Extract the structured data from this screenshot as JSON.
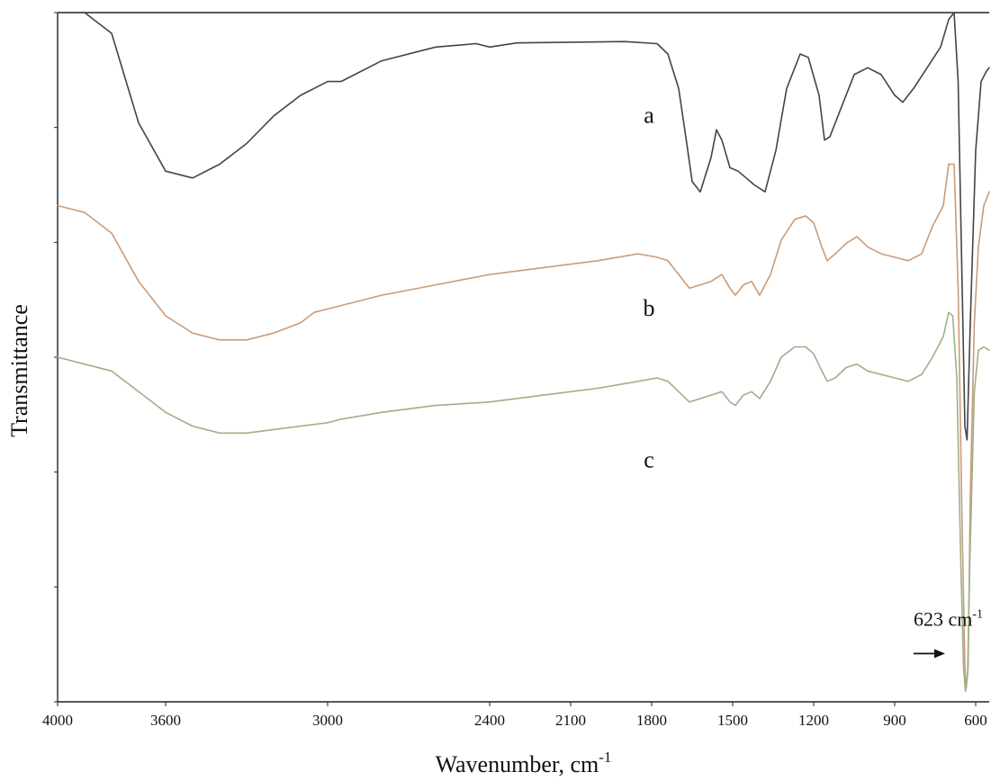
{
  "chart_data": {
    "type": "line",
    "title": "",
    "xlabel": "Wavenumber, cm",
    "xlabel_superscript": "-1",
    "ylabel": "Transmittance",
    "xlim": [
      4000,
      550
    ],
    "xticks": [
      {
        "value": 4000,
        "label": "4000"
      },
      {
        "value": 3600,
        "label": "3600"
      },
      {
        "value": 3000,
        "label": "3000"
      },
      {
        "value": 2400,
        "label": "2400"
      },
      {
        "value": 2100,
        "label": "2100"
      },
      {
        "value": 1800,
        "label": "1800"
      },
      {
        "value": 1500,
        "label": "1500"
      },
      {
        "value": 1200,
        "label": "1200"
      },
      {
        "value": 900,
        "label": "900"
      },
      {
        "value": 600,
        "label": "600"
      }
    ],
    "ylim": [
      0,
      100
    ],
    "grid": false,
    "legend": "none",
    "series": [
      {
        "name": "a",
        "color": "#444444",
        "points": [
          [
            4000,
            100
          ],
          [
            3900,
            100
          ],
          [
            3800,
            97
          ],
          [
            3700,
            84
          ],
          [
            3600,
            77
          ],
          [
            3500,
            76
          ],
          [
            3400,
            78
          ],
          [
            3300,
            81
          ],
          [
            3200,
            85
          ],
          [
            3100,
            88
          ],
          [
            3050,
            89
          ],
          [
            3000,
            90
          ],
          [
            2950,
            90
          ],
          [
            2800,
            93
          ],
          [
            2600,
            95
          ],
          [
            2450,
            95.5
          ],
          [
            2400,
            95
          ],
          [
            2300,
            95.6
          ],
          [
            2100,
            95.7
          ],
          [
            1900,
            95.8
          ],
          [
            1780,
            95.5
          ],
          [
            1740,
            94
          ],
          [
            1700,
            89
          ],
          [
            1670,
            81
          ],
          [
            1650,
            75.5
          ],
          [
            1620,
            74
          ],
          [
            1580,
            79
          ],
          [
            1560,
            83
          ],
          [
            1540,
            81.5
          ],
          [
            1510,
            77.5
          ],
          [
            1480,
            77
          ],
          [
            1450,
            76
          ],
          [
            1420,
            75
          ],
          [
            1380,
            74
          ],
          [
            1340,
            80
          ],
          [
            1300,
            89
          ],
          [
            1250,
            94
          ],
          [
            1220,
            93.5
          ],
          [
            1180,
            88
          ],
          [
            1160,
            81.5
          ],
          [
            1140,
            82
          ],
          [
            1100,
            86
          ],
          [
            1050,
            91
          ],
          [
            1000,
            92
          ],
          [
            950,
            91
          ],
          [
            900,
            88
          ],
          [
            870,
            87
          ],
          [
            830,
            89
          ],
          [
            780,
            92
          ],
          [
            730,
            95
          ],
          [
            700,
            99
          ],
          [
            680,
            100
          ],
          [
            665,
            90
          ],
          [
            650,
            60
          ],
          [
            640,
            40
          ],
          [
            632,
            38
          ],
          [
            620,
            55
          ],
          [
            600,
            80
          ],
          [
            580,
            90
          ],
          [
            560,
            91.5
          ],
          [
            550,
            92
          ]
        ]
      },
      {
        "name": "b",
        "color": "#C89C7A",
        "points": [
          [
            4000,
            72
          ],
          [
            3900,
            71
          ],
          [
            3800,
            68
          ],
          [
            3700,
            61
          ],
          [
            3600,
            56
          ],
          [
            3500,
            53.5
          ],
          [
            3400,
            52.5
          ],
          [
            3300,
            52.5
          ],
          [
            3200,
            53.5
          ],
          [
            3100,
            55
          ],
          [
            3050,
            56.5
          ],
          [
            3000,
            57
          ],
          [
            2950,
            57.5
          ],
          [
            2800,
            59
          ],
          [
            2600,
            60.5
          ],
          [
            2400,
            62
          ],
          [
            2200,
            63
          ],
          [
            2000,
            64
          ],
          [
            1850,
            65
          ],
          [
            1780,
            64.5
          ],
          [
            1740,
            64
          ],
          [
            1700,
            62
          ],
          [
            1660,
            60
          ],
          [
            1620,
            60.5
          ],
          [
            1580,
            61
          ],
          [
            1540,
            62
          ],
          [
            1510,
            60
          ],
          [
            1490,
            59
          ],
          [
            1460,
            60.5
          ],
          [
            1430,
            61
          ],
          [
            1400,
            59
          ],
          [
            1360,
            62
          ],
          [
            1320,
            67
          ],
          [
            1270,
            70
          ],
          [
            1230,
            70.5
          ],
          [
            1200,
            69.5
          ],
          [
            1170,
            66
          ],
          [
            1150,
            64
          ],
          [
            1120,
            65
          ],
          [
            1080,
            66.5
          ],
          [
            1040,
            67.5
          ],
          [
            1000,
            66
          ],
          [
            950,
            65
          ],
          [
            900,
            64.5
          ],
          [
            850,
            64
          ],
          [
            800,
            65
          ],
          [
            760,
            69
          ],
          [
            720,
            72
          ],
          [
            700,
            78
          ],
          [
            680,
            78
          ],
          [
            665,
            60
          ],
          [
            650,
            25
          ],
          [
            640,
            5
          ],
          [
            635,
            2
          ],
          [
            628,
            5
          ],
          [
            620,
            30
          ],
          [
            605,
            55
          ],
          [
            590,
            66
          ],
          [
            570,
            72
          ],
          [
            550,
            74
          ]
        ]
      },
      {
        "name": "c",
        "color": "#9DB08A",
        "points": [
          [
            4000,
            50
          ],
          [
            3900,
            49
          ],
          [
            3800,
            48
          ],
          [
            3700,
            45
          ],
          [
            3600,
            42
          ],
          [
            3500,
            40
          ],
          [
            3400,
            39
          ],
          [
            3300,
            39
          ],
          [
            3200,
            39.5
          ],
          [
            3100,
            40
          ],
          [
            3000,
            40.5
          ],
          [
            2950,
            41
          ],
          [
            2800,
            42
          ],
          [
            2600,
            43
          ],
          [
            2400,
            43.5
          ],
          [
            2200,
            44.5
          ],
          [
            2000,
            45.5
          ],
          [
            1850,
            46.5
          ],
          [
            1780,
            47
          ],
          [
            1740,
            46.5
          ],
          [
            1700,
            45
          ],
          [
            1660,
            43.5
          ],
          [
            1620,
            44
          ],
          [
            1580,
            44.5
          ],
          [
            1540,
            45
          ],
          [
            1510,
            43.5
          ],
          [
            1490,
            43
          ],
          [
            1460,
            44.5
          ],
          [
            1430,
            45
          ],
          [
            1400,
            44
          ],
          [
            1360,
            46.5
          ],
          [
            1320,
            50
          ],
          [
            1270,
            51.5
          ],
          [
            1230,
            51.5
          ],
          [
            1200,
            50.5
          ],
          [
            1170,
            48
          ],
          [
            1150,
            46.5
          ],
          [
            1120,
            47
          ],
          [
            1080,
            48.5
          ],
          [
            1040,
            49
          ],
          [
            1000,
            48
          ],
          [
            950,
            47.5
          ],
          [
            900,
            47
          ],
          [
            850,
            46.5
          ],
          [
            800,
            47.5
          ],
          [
            760,
            50
          ],
          [
            720,
            53
          ],
          [
            700,
            56.5
          ],
          [
            685,
            56
          ],
          [
            670,
            47
          ],
          [
            655,
            20
          ],
          [
            645,
            5
          ],
          [
            638,
            1.5
          ],
          [
            630,
            4
          ],
          [
            622,
            20
          ],
          [
            605,
            45
          ],
          [
            590,
            51
          ],
          [
            570,
            51.5
          ],
          [
            550,
            51
          ]
        ]
      }
    ],
    "series_labels": [
      {
        "text": "a",
        "x": 1810,
        "y": 84
      },
      {
        "text": "b",
        "x": 1810,
        "y": 56
      },
      {
        "text": "c",
        "x": 1810,
        "y": 34
      }
    ],
    "annotation": {
      "text": "623 cm",
      "superscript": "-1",
      "arrow_from": 830,
      "arrow_to": 720,
      "arrow_y": 7,
      "text_x": 830,
      "text_y": 11
    }
  }
}
